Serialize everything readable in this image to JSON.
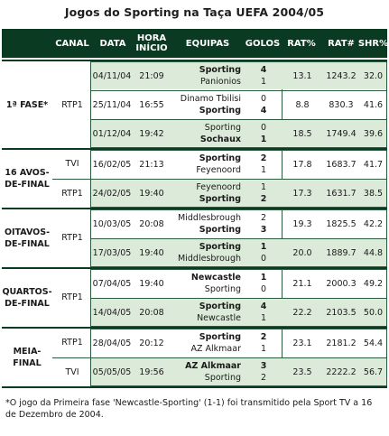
{
  "title": "Jogos do Sporting na Taça UEFA 2004/05",
  "headers": {
    "canal": "CANAL",
    "data": "DATA",
    "hora": "HORA\nINÍCIO",
    "equipas": "EQUIPAS",
    "golos": "GOLOS",
    "rat_pct": "RAT%",
    "rat_num": "RAT#",
    "shr_pct": "SHR%"
  },
  "groups": [
    {
      "stage": "1ª FASE*",
      "canals": [
        "RTP1"
      ],
      "matches": [
        {
          "date": "04/11/04",
          "time": "21:09",
          "team1": "Sporting",
          "goals1": "4",
          "team1_bold": true,
          "team2": "Panionios",
          "goals2": "1",
          "team2_bold": false,
          "rat_pct": "13.1",
          "rat_num": "1243.2",
          "shr_pct": "32.0"
        },
        {
          "date": "25/11/04",
          "time": "16:55",
          "team1": "Dinamo Tbilisi",
          "goals1": "0",
          "team1_bold": false,
          "team2": "Sporting",
          "goals2": "4",
          "team2_bold": true,
          "rat_pct": "8.8",
          "rat_num": "830.3",
          "shr_pct": "41.6"
        },
        {
          "date": "01/12/04",
          "time": "19:42",
          "team1": "Sporting",
          "goals1": "0",
          "team1_bold": false,
          "team2": "Sochaux",
          "goals2": "1",
          "team2_bold": true,
          "rat_pct": "18.5",
          "rat_num": "1749.4",
          "shr_pct": "39.6"
        }
      ]
    },
    {
      "stage": "16 AVOS-\nDE-FINAL",
      "canals": [
        "TVI",
        "RTP1"
      ],
      "matches": [
        {
          "date": "16/02/05",
          "time": "21:13",
          "team1": "Sporting",
          "goals1": "2",
          "team1_bold": true,
          "team2": "Feyenoord",
          "goals2": "1",
          "team2_bold": false,
          "rat_pct": "17.8",
          "rat_num": "1683.7",
          "shr_pct": "41.7"
        },
        {
          "date": "24/02/05",
          "time": "19:40",
          "team1": "Feyenoord",
          "goals1": "1",
          "team1_bold": false,
          "team2": "Sporting",
          "goals2": "2",
          "team2_bold": true,
          "rat_pct": "17.3",
          "rat_num": "1631.7",
          "shr_pct": "38.5"
        }
      ]
    },
    {
      "stage": "OITAVOS-\nDE-FINAL",
      "canals": [
        "RTP1"
      ],
      "matches": [
        {
          "date": "10/03/05",
          "time": "20:08",
          "team1": "Middlesbrough",
          "goals1": "2",
          "team1_bold": false,
          "team2": "Sporting",
          "goals2": "3",
          "team2_bold": true,
          "rat_pct": "19.3",
          "rat_num": "1825.5",
          "shr_pct": "42.2"
        },
        {
          "date": "17/03/05",
          "time": "19:40",
          "team1": "Sporting",
          "goals1": "1",
          "team1_bold": true,
          "team2": "Middlesbrough",
          "goals2": "0",
          "team2_bold": false,
          "rat_pct": "20.0",
          "rat_num": "1889.7",
          "shr_pct": "44.8"
        }
      ]
    },
    {
      "stage": "QUARTOS-\nDE-FINAL",
      "canals": [
        "RTP1"
      ],
      "matches": [
        {
          "date": "07/04/05",
          "time": "19:40",
          "team1": "Newcastle",
          "goals1": "1",
          "team1_bold": true,
          "team2": "Sporting",
          "goals2": "0",
          "team2_bold": false,
          "rat_pct": "21.1",
          "rat_num": "2000.3",
          "shr_pct": "49.2"
        },
        {
          "date": "14/04/05",
          "time": "20:08",
          "team1": "Sporting",
          "goals1": "4",
          "team1_bold": true,
          "team2": "Newcastle",
          "goals2": "1",
          "team2_bold": false,
          "rat_pct": "22.2",
          "rat_num": "2103.5",
          "shr_pct": "50.0"
        }
      ]
    },
    {
      "stage": "MEIA-\nFINAL",
      "canals": [
        "RTP1",
        "TVI"
      ],
      "matches": [
        {
          "date": "28/04/05",
          "time": "20:12",
          "team1": "Sporting",
          "goals1": "2",
          "team1_bold": true,
          "team2": "AZ Alkmaar",
          "goals2": "1",
          "team2_bold": false,
          "rat_pct": "23.1",
          "rat_num": "2181.2",
          "shr_pct": "54.4"
        },
        {
          "date": "05/05/05",
          "time": "19:56",
          "team1": "AZ Alkmaar",
          "goals1": "3",
          "team1_bold": true,
          "team2": "Sporting",
          "goals2": "2",
          "team2_bold": false,
          "rat_pct": "23.5",
          "rat_num": "2222.2",
          "shr_pct": "56.7"
        }
      ]
    }
  ],
  "footnote": "*O jogo da Primeira fase 'Newcastle-Sporting' (1-1) foi transmitido pela Sport TV a 16 de Dezembro de 2004.",
  "colors": {
    "header_bg": "#0b3a23",
    "row_tint": "#dcebd9",
    "border": "#2c5a3c"
  }
}
